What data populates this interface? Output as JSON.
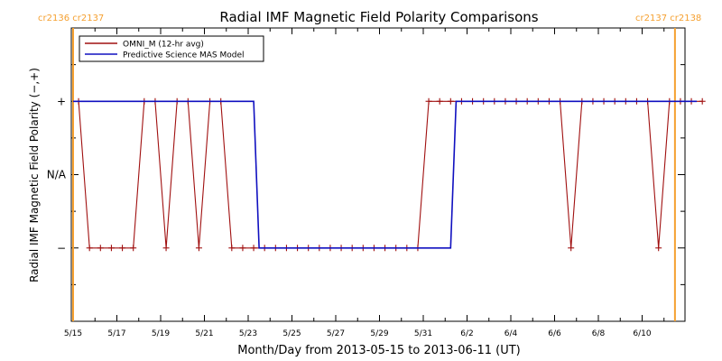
{
  "chart_data": {
    "type": "line",
    "title": "Radial IMF Magnetic Field Polarity Comparisons",
    "xlabel": "Month/Day from 2013-05-15 to 2013-06-11 (UT)",
    "ylabel": "Radial IMF Magnetic Field Polarity (−,+)",
    "y_tick_labels": [
      "+",
      "N/A",
      "−"
    ],
    "y_levels": {
      "+": 1,
      "N/A": 0,
      "−": -1
    },
    "ylim": [
      -2,
      2
    ],
    "xlim": [
      "2013-05-15",
      "2013-06-11"
    ],
    "x_tick_labels": [
      "5/15",
      "5/17",
      "5/19",
      "5/21",
      "5/23",
      "5/25",
      "5/27",
      "5/29",
      "5/31",
      "6/2",
      "6/4",
      "6/6",
      "6/8",
      "6/10"
    ],
    "x_tick_dates": [
      "2013-05-15",
      "2013-05-17",
      "2013-05-19",
      "2013-05-21",
      "2013-05-23",
      "2013-05-25",
      "2013-05-27",
      "2013-05-29",
      "2013-05-31",
      "2013-06-02",
      "2013-06-04",
      "2013-06-06",
      "2013-06-08",
      "2013-06-10"
    ],
    "grid": false,
    "legend_position": "top-left",
    "carrington_labels": [
      {
        "label": "cr2136 cr2137",
        "position": "left",
        "date": "2013-05-15",
        "color": "#f5a030"
      },
      {
        "label": "cr2137 cr2138",
        "position": "right",
        "date": "2013-06-11 12:00",
        "color": "#f5a030"
      }
    ],
    "series": [
      {
        "name": "OMNI_M (12-hr avg)",
        "color": "#a01010",
        "marker": "+",
        "points": [
          [
            "2013-05-15 06:00",
            1
          ],
          [
            "2013-05-15 18:00",
            -1
          ],
          [
            "2013-05-16 06:00",
            -1
          ],
          [
            "2013-05-16 18:00",
            -1
          ],
          [
            "2013-05-17 06:00",
            -1
          ],
          [
            "2013-05-17 18:00",
            -1
          ],
          [
            "2013-05-18 06:00",
            1
          ],
          [
            "2013-05-18 18:00",
            1
          ],
          [
            "2013-05-19 06:00",
            -1
          ],
          [
            "2013-05-19 18:00",
            1
          ],
          [
            "2013-05-20 06:00",
            1
          ],
          [
            "2013-05-20 18:00",
            -1
          ],
          [
            "2013-05-21 06:00",
            1
          ],
          [
            "2013-05-21 18:00",
            1
          ],
          [
            "2013-05-22 06:00",
            -1
          ],
          [
            "2013-05-22 18:00",
            -1
          ],
          [
            "2013-05-23 06:00",
            -1
          ],
          [
            "2013-05-23 18:00",
            -1
          ],
          [
            "2013-05-24 06:00",
            -1
          ],
          [
            "2013-05-24 18:00",
            -1
          ],
          [
            "2013-05-25 06:00",
            -1
          ],
          [
            "2013-05-25 18:00",
            -1
          ],
          [
            "2013-05-26 06:00",
            -1
          ],
          [
            "2013-05-26 18:00",
            -1
          ],
          [
            "2013-05-27 06:00",
            -1
          ],
          [
            "2013-05-27 18:00",
            -1
          ],
          [
            "2013-05-28 06:00",
            -1
          ],
          [
            "2013-05-28 18:00",
            -1
          ],
          [
            "2013-05-29 06:00",
            -1
          ],
          [
            "2013-05-29 18:00",
            -1
          ],
          [
            "2013-05-30 06:00",
            -1
          ],
          [
            "2013-05-30 18:00",
            -1
          ],
          [
            "2013-05-31 06:00",
            1
          ],
          [
            "2013-05-31 18:00",
            1
          ],
          [
            "2013-06-01 06:00",
            1
          ],
          [
            "2013-06-01 18:00",
            1
          ],
          [
            "2013-06-02 06:00",
            1
          ],
          [
            "2013-06-02 18:00",
            1
          ],
          [
            "2013-06-03 06:00",
            1
          ],
          [
            "2013-06-03 18:00",
            1
          ],
          [
            "2013-06-04 06:00",
            1
          ],
          [
            "2013-06-04 18:00",
            1
          ],
          [
            "2013-06-05 06:00",
            1
          ],
          [
            "2013-06-05 18:00",
            1
          ],
          [
            "2013-06-06 06:00",
            1
          ],
          [
            "2013-06-06 18:00",
            -1
          ],
          [
            "2013-06-07 06:00",
            1
          ],
          [
            "2013-06-07 18:00",
            1
          ],
          [
            "2013-06-08 06:00",
            1
          ],
          [
            "2013-06-08 18:00",
            1
          ],
          [
            "2013-06-09 06:00",
            1
          ],
          [
            "2013-06-09 18:00",
            1
          ],
          [
            "2013-06-10 06:00",
            1
          ],
          [
            "2013-06-10 18:00",
            -1
          ],
          [
            "2013-06-11 06:00",
            1
          ],
          [
            "2013-06-11 18:00",
            1
          ],
          [
            "2013-06-12 06:00",
            1
          ],
          [
            "2013-06-12 18:00",
            1
          ]
        ]
      },
      {
        "name": "Predictive Science MAS Model",
        "color": "#1010c0",
        "points": [
          [
            "2013-05-15 00:00",
            1
          ],
          [
            "2013-05-23 06:00",
            1
          ],
          [
            "2013-05-23 12:00",
            -1
          ],
          [
            "2013-06-01 06:00",
            -1
          ],
          [
            "2013-06-01 12:00",
            1
          ],
          [
            "2013-06-12 12:00",
            1
          ]
        ]
      }
    ]
  }
}
